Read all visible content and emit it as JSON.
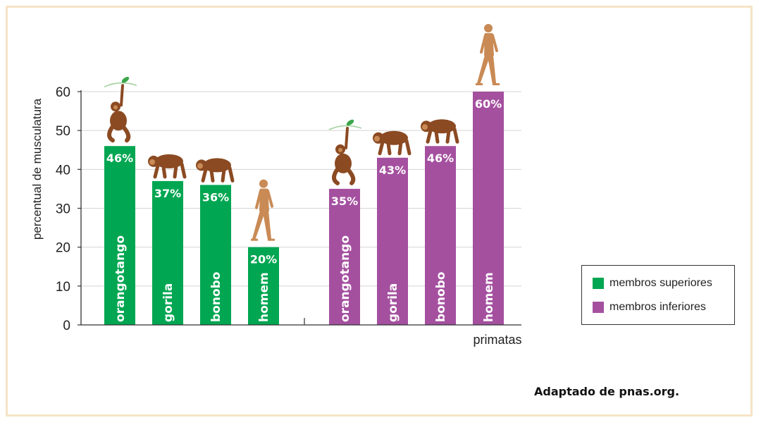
{
  "chart_data": {
    "type": "bar",
    "ylabel": "percentual de musculatura",
    "xlabel": "primatas",
    "ylim": [
      0,
      60
    ],
    "yticks": [
      0,
      10,
      20,
      30,
      40,
      50,
      60
    ],
    "grid": true,
    "legend_position": "right",
    "groups": [
      {
        "name": "membros superiores",
        "color": "#00a651",
        "categories": [
          "orangotango",
          "gorila",
          "bonobo",
          "homem"
        ],
        "values": [
          46,
          37,
          36,
          20
        ],
        "labels": [
          "46%",
          "37%",
          "36%",
          "20%"
        ]
      },
      {
        "name": "membros inferiores",
        "color": "#a4509f",
        "categories": [
          "orangotango",
          "gorila",
          "bonobo",
          "homem"
        ],
        "values": [
          35,
          43,
          46,
          60
        ],
        "labels": [
          "35%",
          "43%",
          "46%",
          "60%"
        ]
      }
    ]
  },
  "legend": {
    "items": [
      {
        "label": "membros superiores",
        "color": "#00a651"
      },
      {
        "label": "membros inferiores",
        "color": "#a4509f"
      }
    ]
  },
  "source": "Adaptado de pnas.org."
}
